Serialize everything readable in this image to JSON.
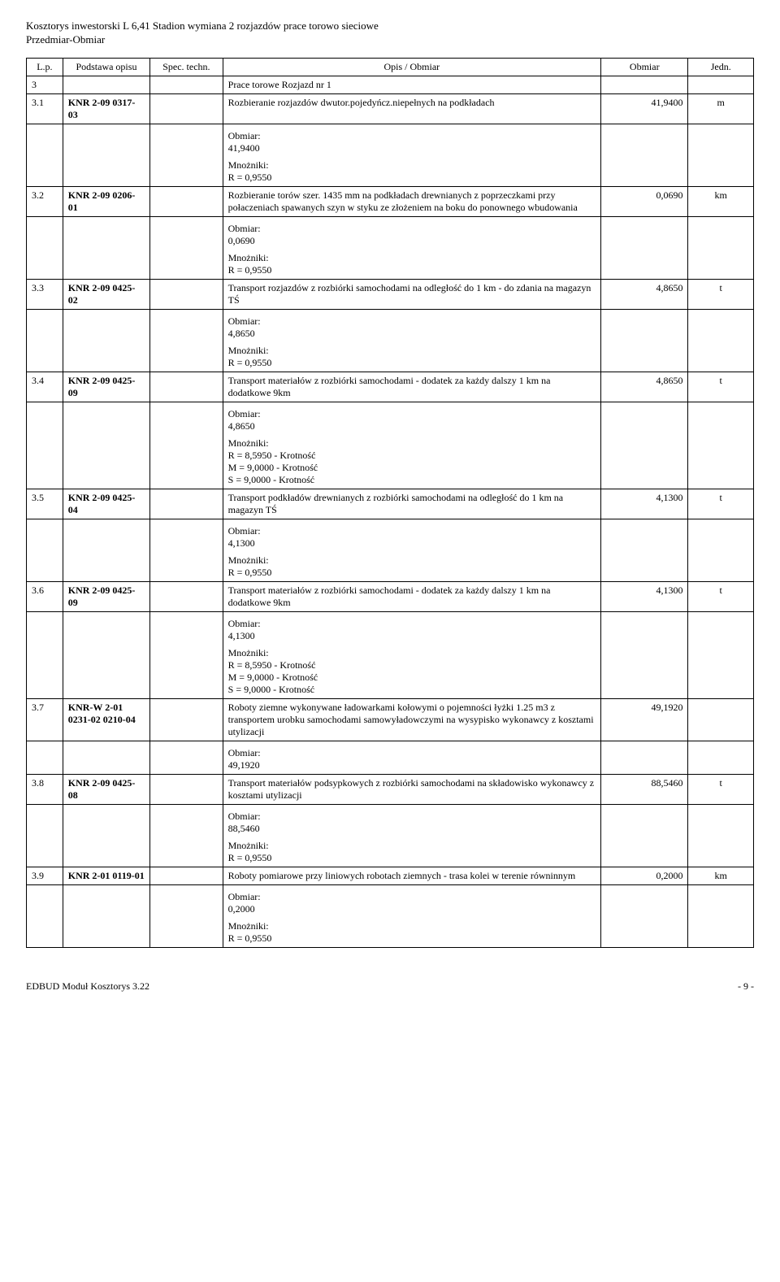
{
  "doc": {
    "title": "Kosztorys inwestorski L 6,41 Stadion wymiana 2 rozjazdów prace torowo sieciowe",
    "subtitle": "Przedmiar-Obmiar"
  },
  "headers": {
    "lp": "L.p.",
    "podstawa": "Podstawa opisu",
    "spec": "Spec. techn.",
    "opis": "Opis / Obmiar",
    "obmiar": "Obmiar",
    "jedn": "Jedn."
  },
  "labels": {
    "obmiar": "Obmiar:",
    "mnozniki": "Mnożniki:"
  },
  "section": {
    "num": "3",
    "title": "Prace torowe Rozjazd nr 1"
  },
  "rows": [
    {
      "lp": "3.1",
      "podstawa": "KNR 2-09 0317-03",
      "opis": "Rozbieranie rozjazdów dwutor.pojedyńcz.niepełnych na podkładach",
      "obmiar_val": "41,9400",
      "jedn": "m",
      "measure": "41,9400",
      "mn": [
        "R = 0,9550"
      ]
    },
    {
      "lp": "3.2",
      "podstawa": "KNR 2-09 0206-01",
      "opis": "Rozbieranie torów szer. 1435 mm na podkładach drewnianych z poprzeczkami przy połaczeniach spawanych szyn w styku ze złożeniem na boku do ponownego wbudowania",
      "obmiar_val": "0,0690",
      "jedn": "km",
      "measure": "0,0690",
      "mn": [
        "R = 0,9550"
      ]
    },
    {
      "lp": "3.3",
      "podstawa": "KNR 2-09 0425-02",
      "opis": "Transport rozjazdów z rozbiórki samochodami na odległość do 1 km - do zdania na magazyn TŚ",
      "obmiar_val": "4,8650",
      "jedn": "t",
      "measure": "4,8650",
      "mn": [
        "R = 0,9550"
      ]
    },
    {
      "lp": "3.4",
      "podstawa": "KNR 2-09 0425-09",
      "opis": "Transport materiałów z rozbiórki samochodami - dodatek za każdy dalszy 1 km na dodatkowe 9km",
      "obmiar_val": "4,8650",
      "jedn": "t",
      "measure": "4,8650",
      "mn": [
        "R = 8,5950 - Krotność",
        "M = 9,0000 - Krotność",
        "S = 9,0000 - Krotność"
      ]
    },
    {
      "lp": "3.5",
      "podstawa": "KNR 2-09 0425-04",
      "opis": "Transport podkładów drewnianych z rozbiórki samochodami na odległość do 1 km na magazyn TŚ",
      "obmiar_val": "4,1300",
      "jedn": "t",
      "measure": "4,1300",
      "mn": [
        "R = 0,9550"
      ]
    },
    {
      "lp": "3.6",
      "podstawa": "KNR 2-09 0425-09",
      "opis": "Transport materiałów z rozbiórki samochodami - dodatek za każdy dalszy 1 km na dodatkowe 9km",
      "obmiar_val": "4,1300",
      "jedn": "t",
      "measure": "4,1300",
      "mn": [
        "R = 8,5950 - Krotność",
        "M = 9,0000 - Krotność",
        "S = 9,0000 - Krotność"
      ]
    },
    {
      "lp": "3.7",
      "podstawa": "KNR-W 2-01 0231-02 0210-04",
      "opis": "Roboty ziemne wykonywane ładowarkami kołowymi o pojemności łyżki 1.25 m3 z transportem urobku samochodami samowyładowczymi na wysypisko wykonawcy z kosztami utylizacji",
      "obmiar_val": "49,1920",
      "jedn": "",
      "measure": "49,1920",
      "mn": []
    },
    {
      "lp": "3.8",
      "podstawa": "KNR 2-09 0425-08",
      "opis": "Transport materiałów podsypkowych z rozbiórki samochodami na składowisko wykonawcy z kosztami utylizacji",
      "obmiar_val": "88,5460",
      "jedn": "t",
      "measure": "88,5460",
      "mn": [
        "R = 0,9550"
      ]
    },
    {
      "lp": "3.9",
      "podstawa": "KNR 2-01 0119-01",
      "opis": "Roboty pomiarowe przy liniowych robotach ziemnych - trasa kolei w terenie równinnym",
      "obmiar_val": "0,2000",
      "jedn": "km",
      "measure": "0,2000",
      "mn": [
        "R = 0,9550"
      ]
    }
  ],
  "footer": {
    "left": "EDBUD Moduł Kosztorys 3.22",
    "right": "- 9 -"
  }
}
